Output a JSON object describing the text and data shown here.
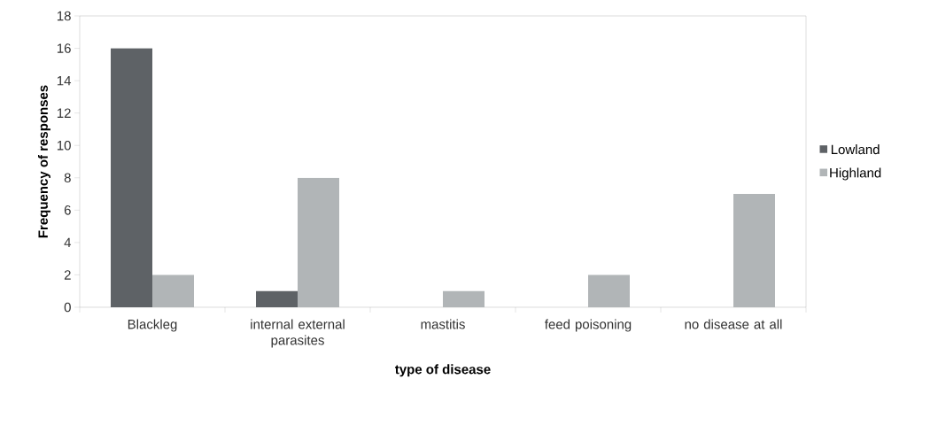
{
  "chart_data": {
    "type": "bar",
    "xlabel": "type of disease",
    "ylabel": "Frequency of responses",
    "categories": [
      "Blackleg",
      "internal external parasites",
      "mastitis",
      "feed poisoning",
      "no disease at all"
    ],
    "series": [
      {
        "name": "Lowland",
        "color": "#5e6266",
        "values": [
          16,
          1,
          0,
          0,
          0
        ]
      },
      {
        "name": "Highland",
        "color": "#b1b5b7",
        "values": [
          2,
          8,
          1,
          2,
          7
        ]
      }
    ],
    "ylim": [
      0,
      18
    ],
    "yticks": [
      0,
      2,
      4,
      6,
      8,
      10,
      12,
      14,
      16,
      18
    ],
    "legend": "right"
  }
}
